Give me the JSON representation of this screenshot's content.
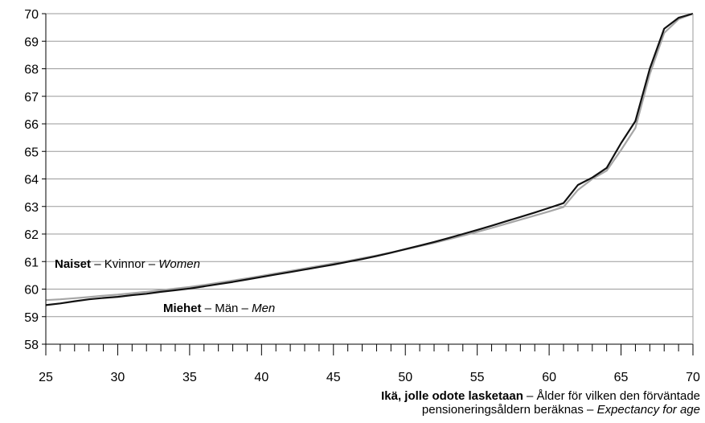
{
  "chart_data": {
    "type": "line",
    "title": "",
    "xlim": [
      25,
      70
    ],
    "ylim": [
      58,
      70
    ],
    "x_ticks": [
      25,
      30,
      35,
      40,
      45,
      50,
      55,
      60,
      65,
      70
    ],
    "y_ticks": [
      58,
      59,
      60,
      61,
      62,
      63,
      64,
      65,
      66,
      67,
      68,
      69,
      70
    ],
    "x_minor_step": 1,
    "grid": "horizontal",
    "xlabel": {
      "bold": "Ikä, jolle odote lasketaan",
      "sep1": " – ",
      "line1_rest": "Ålder för vilken den förväntade",
      "line2_start": "pensioneringsåldern beräknas",
      "sep2": " – ",
      "italic": "Expectancy for age"
    },
    "x": [
      25,
      26,
      27,
      28,
      29,
      30,
      31,
      32,
      33,
      34,
      35,
      36,
      37,
      38,
      39,
      40,
      41,
      42,
      43,
      44,
      45,
      46,
      47,
      48,
      49,
      50,
      51,
      52,
      53,
      54,
      55,
      56,
      57,
      58,
      59,
      60,
      61,
      62,
      63,
      64,
      65,
      66,
      67,
      68,
      69,
      70
    ],
    "series": [
      {
        "name": "Miehet – Män – Men",
        "color": "#111111",
        "values": [
          59.42,
          59.48,
          59.56,
          59.63,
          59.68,
          59.72,
          59.78,
          59.83,
          59.9,
          59.96,
          60.02,
          60.1,
          60.18,
          60.26,
          60.35,
          60.44,
          60.53,
          60.62,
          60.71,
          60.8,
          60.89,
          60.99,
          61.09,
          61.2,
          61.32,
          61.45,
          61.58,
          61.71,
          61.85,
          62.0,
          62.15,
          62.3,
          62.46,
          62.62,
          62.78,
          62.95,
          63.12,
          63.78,
          64.05,
          64.4,
          65.3,
          66.1,
          68.0,
          69.45,
          69.85,
          70.0
        ]
      },
      {
        "name": "Naiset – Kvinnor – Women",
        "color": "#a6a6a6",
        "values": [
          59.6,
          59.63,
          59.67,
          59.71,
          59.76,
          59.8,
          59.85,
          59.9,
          59.96,
          60.02,
          60.08,
          60.15,
          60.23,
          60.31,
          60.39,
          60.48,
          60.57,
          60.66,
          60.75,
          60.84,
          60.93,
          61.02,
          61.12,
          61.22,
          61.33,
          61.44,
          61.56,
          61.68,
          61.81,
          61.94,
          62.08,
          62.22,
          62.37,
          62.52,
          62.67,
          62.82,
          62.98,
          63.6,
          64.0,
          64.3,
          65.05,
          65.85,
          67.8,
          69.3,
          69.8,
          70.0
        ]
      }
    ],
    "annotations": [
      {
        "series": 1,
        "bold": "Naiset",
        "sep1": " – ",
        "mid": "Kvinnor",
        "sep2": " – ",
        "italic": "Women"
      },
      {
        "series": 0,
        "bold": "Miehet",
        "sep1": " – ",
        "mid": "Män",
        "sep2": " – ",
        "italic": "Men"
      }
    ]
  }
}
